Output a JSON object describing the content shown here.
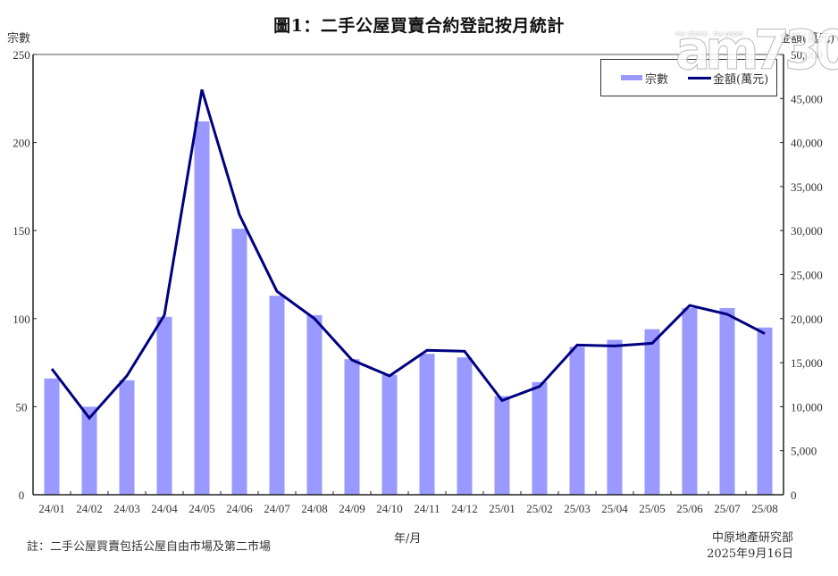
{
  "title": "圖1：二手公屋買賣合約登記按月統計",
  "axes": {
    "left_label": "宗數",
    "right_label": "金額(萬元)",
    "x_label": "年/月",
    "left_ticks": [
      "0",
      "50",
      "100",
      "150",
      "200",
      "250"
    ],
    "right_ticks": [
      "0",
      "5,000",
      "10,000",
      "15,000",
      "20,000",
      "25,000",
      "30,000",
      "35,000",
      "40,000",
      "45,000",
      "50,000"
    ]
  },
  "legend": {
    "bar_label": "宗數",
    "line_label": "金額(萬元)"
  },
  "footer": {
    "note": "註：二手公屋買賣包括公屋自由市場及第二市場",
    "source": "中原地產研究部",
    "date": "2025年9月16日"
  },
  "watermark": {
    "brand": "am730",
    "tagline": "my choice . my paper"
  },
  "colors": {
    "bar": "#9999FF",
    "line": "#000080",
    "axis": "#222222"
  },
  "chart_data": {
    "type": "bar+line",
    "title": "圖1：二手公屋買賣合約登記按月統計",
    "xlabel": "年/月",
    "ylabel": "宗數",
    "y2label": "金額(萬元)",
    "ylim": [
      0,
      250
    ],
    "y2lim": [
      0,
      50000
    ],
    "grid": false,
    "legend_position": "top-right",
    "categories": [
      "24/01",
      "24/02",
      "24/03",
      "24/04",
      "24/05",
      "24/06",
      "24/07",
      "24/08",
      "24/09",
      "24/10",
      "24/11",
      "24/12",
      "25/01",
      "25/02",
      "25/03",
      "25/04",
      "25/05",
      "25/06",
      "25/07",
      "25/08"
    ],
    "series": [
      {
        "name": "宗數",
        "type": "bar",
        "axis": "left",
        "values": [
          66,
          50,
          65,
          101,
          212,
          151,
          113,
          102,
          77,
          68,
          80,
          78,
          56,
          64,
          84,
          88,
          94,
          106,
          106,
          95
        ]
      },
      {
        "name": "金額(萬元)",
        "type": "line",
        "axis": "right",
        "values": [
          14300,
          8700,
          13500,
          20400,
          46000,
          31800,
          23100,
          20000,
          15300,
          13500,
          16400,
          16300,
          10700,
          12300,
          17000,
          16900,
          17200,
          21500,
          20500,
          18300
        ]
      }
    ]
  }
}
